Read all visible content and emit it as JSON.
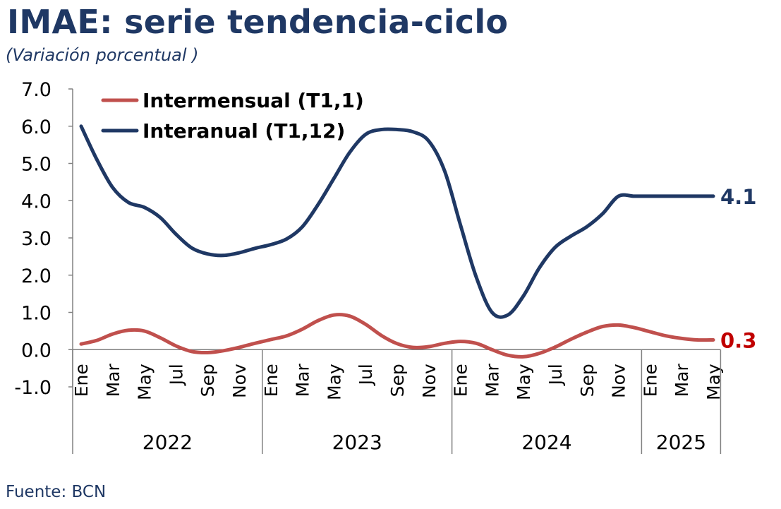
{
  "header": {
    "title": "IMAE: serie tendencia-ciclo",
    "subtitle": "(Variación porcentual )"
  },
  "footer": {
    "source": "Fuente: BCN"
  },
  "chart_data": {
    "type": "line",
    "title": "IMAE: serie tendencia-ciclo",
    "subtitle": "(Variación porcentual )",
    "ylim": [
      -1.0,
      7.0
    ],
    "yticks": [
      "7.0",
      "6.0",
      "5.0",
      "4.0",
      "3.0",
      "2.0",
      "1.0",
      "0.0",
      "-1.0"
    ],
    "ytick_values": [
      7,
      6,
      5,
      4,
      3,
      2,
      1,
      0,
      -1
    ],
    "x": [
      "2022-01",
      "2022-02",
      "2022-03",
      "2022-04",
      "2022-05",
      "2022-06",
      "2022-07",
      "2022-08",
      "2022-09",
      "2022-10",
      "2022-11",
      "2022-12",
      "2023-01",
      "2023-02",
      "2023-03",
      "2023-04",
      "2023-05",
      "2023-06",
      "2023-07",
      "2023-08",
      "2023-09",
      "2023-10",
      "2023-11",
      "2023-12",
      "2024-01",
      "2024-02",
      "2024-03",
      "2024-04",
      "2024-05",
      "2024-06",
      "2024-07",
      "2024-08",
      "2024-09",
      "2024-10",
      "2024-11",
      "2024-12",
      "2025-01",
      "2025-02",
      "2025-03",
      "2025-04",
      "2025-05"
    ],
    "month_tick_labels": [
      "Ene",
      "Mar",
      "May",
      "Jul",
      "Sep",
      "Nov",
      "Ene",
      "Mar",
      "May",
      "Jul",
      "Sep",
      "Nov",
      "Ene",
      "Mar",
      "May",
      "Jul",
      "Sep",
      "Nov",
      "Ene",
      "Mar",
      "May"
    ],
    "years": [
      {
        "label": "2022",
        "months": 12
      },
      {
        "label": "2023",
        "months": 12
      },
      {
        "label": "2024",
        "months": 12
      },
      {
        "label": "2025",
        "months": 5
      }
    ],
    "series": [
      {
        "name": "Intermensual (T1,1)",
        "color": "#c0504d",
        "end_label": "0.3",
        "end_label_color": "#c00000",
        "values": [
          0.15,
          0.25,
          0.42,
          0.52,
          0.5,
          0.32,
          0.1,
          -0.05,
          -0.08,
          -0.03,
          0.06,
          0.17,
          0.27,
          0.37,
          0.55,
          0.78,
          0.93,
          0.9,
          0.68,
          0.38,
          0.16,
          0.06,
          0.08,
          0.17,
          0.22,
          0.17,
          0.0,
          -0.15,
          -0.19,
          -0.1,
          0.07,
          0.28,
          0.47,
          0.62,
          0.66,
          0.59,
          0.48,
          0.37,
          0.3,
          0.26,
          0.26
        ]
      },
      {
        "name": "Interanual (T1,12)",
        "color": "#1f3864",
        "end_label": "4.1",
        "end_label_color": "#1f3864",
        "values": [
          6.0,
          5.1,
          4.35,
          3.95,
          3.82,
          3.55,
          3.1,
          2.73,
          2.57,
          2.53,
          2.6,
          2.72,
          2.82,
          2.97,
          3.3,
          3.9,
          4.6,
          5.3,
          5.78,
          5.91,
          5.91,
          5.85,
          5.6,
          4.8,
          3.35,
          1.95,
          1.0,
          0.93,
          1.45,
          2.2,
          2.75,
          3.05,
          3.3,
          3.65,
          4.12,
          4.12,
          4.12,
          4.12,
          4.12,
          4.12,
          4.12
        ]
      }
    ],
    "legend_position": "top-left",
    "grid": false
  }
}
